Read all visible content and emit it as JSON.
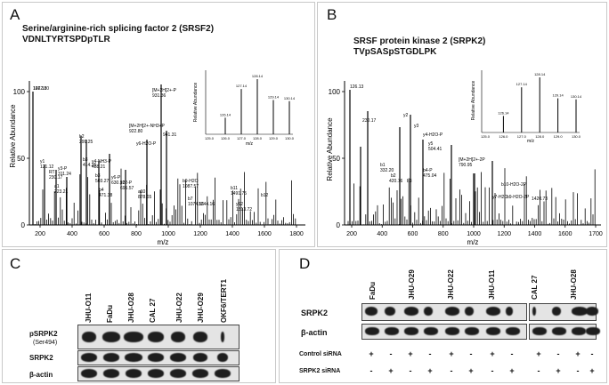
{
  "panelA": {
    "label": "A",
    "title1": "Serine/arginine-rich splicing factor 2 (SRSF2)",
    "title2": "VDNLTYRTSPDpTLR",
    "ylabel": "Relative Abundance",
    "xlabel": "m/z",
    "yticks": [
      "0",
      "50",
      "100"
    ],
    "xticks": [
      "200",
      "400",
      "600",
      "800",
      "1000",
      "1200",
      "1400",
      "1600",
      "1800"
    ],
    "peak_labels": [
      "126.13",
      "y1",
      "121.12",
      "RT",
      "230.17",
      "y3-P",
      "311.24",
      "a1",
      "223.21",
      "b2",
      "299.25",
      "b3",
      "414.25",
      "y4-NH3-P",
      "488.21",
      "b3",
      "503.27",
      "b4",
      "471.38",
      "y6-P",
      "630.32",
      "y12-P",
      "695.57",
      "a10",
      "878.65",
      "y6-H2O-P",
      "[M+2H]2+-NH3+P",
      "922.80",
      "[M+2H]2+-P",
      "931.36",
      "941.31",
      "b9-H2O",
      "1087.57",
      "b7",
      "1074.56",
      "1244.16",
      "b11",
      "1491.75",
      "y12",
      "1513.72",
      "b12",
      "1672.80"
    ],
    "inset": {
      "ylabel": "Relative Abundance",
      "xlabel": "m/z",
      "xticks": [
        "125.0",
        "126.0",
        "127.0",
        "128.0",
        "129.0",
        "130.0"
      ],
      "peak_labels": [
        "126.14",
        "127.14",
        "128.14",
        "129.14",
        "130.14"
      ]
    }
  },
  "panelB": {
    "label": "B",
    "title1": "SRSF protein kinase 2 (SRPK2)",
    "title2": "TVpSASpSTGDLPK",
    "ylabel": "Relative Abundance",
    "xlabel": "m/z",
    "yticks": [
      "0",
      "50",
      "100"
    ],
    "xticks": [
      "200",
      "400",
      "600",
      "800",
      "1000",
      "1200",
      "1400",
      "1600",
      "1700"
    ],
    "peak_labels": [
      "126.13",
      "230.17",
      "y2",
      "b1",
      "332.20",
      "y3",
      "b2",
      "420.76",
      "b3",
      "y4-H2O-P",
      "y5",
      "504.41",
      "b4-P",
      "475.04",
      "[M+2H]2+-2P",
      "790.95",
      "y7-H2O",
      "b10-H2O-2P",
      "b9-H2O-2P",
      "1420.73"
    ],
    "inset": {
      "ylabel": "Relative Abundance",
      "xlabel": "m/z",
      "xticks": [
        "125.0",
        "126.0",
        "127.0",
        "128.0",
        "129.0",
        "130.0"
      ],
      "peak_labels": [
        "126.14",
        "127.14",
        "128.14",
        "129.14",
        "130.14"
      ]
    }
  },
  "panelC": {
    "label": "C",
    "columns": [
      "JHU-O11",
      "FaDu",
      "JHU-O28",
      "CAL 27",
      "JHU-O22",
      "JHU-O29",
      "OKF6/TERT1"
    ],
    "rows": [
      {
        "label": "pSRPK2",
        "sublabel": "(Ser494)"
      },
      {
        "label": "SRPK2",
        "sublabel": ""
      },
      {
        "label": "β-actin",
        "sublabel": ""
      }
    ]
  },
  "panelD": {
    "label": "D",
    "groups": [
      "FaDu",
      "JHU-O29",
      "JHU-O22",
      "JHU-O11",
      "CAL 27",
      "JHU-O28"
    ],
    "rows": [
      "SRPK2",
      "β-actin"
    ],
    "treatments": [
      {
        "label": "Control siRNA",
        "signs": [
          "+",
          "-",
          "+",
          "-",
          "+",
          "-",
          "+",
          "-",
          "+",
          "-",
          "+",
          "-"
        ]
      },
      {
        "label": "SRPK2 siRNA",
        "signs": [
          "-",
          "+",
          "-",
          "+",
          "-",
          "+",
          "-",
          "+",
          "-",
          "+",
          "-",
          "+"
        ]
      }
    ]
  }
}
